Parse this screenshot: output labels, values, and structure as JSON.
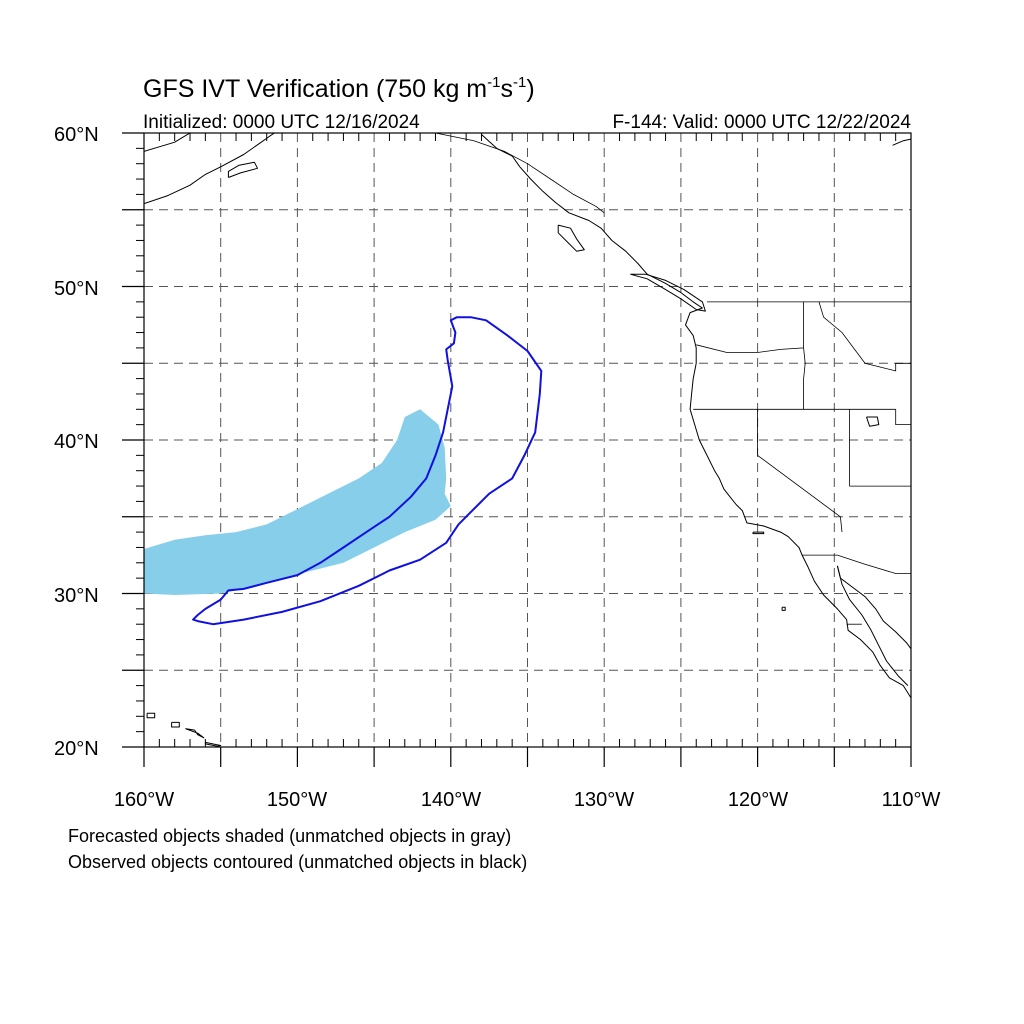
{
  "title": {
    "main": "GFS IVT Verification (750 kg m",
    "sup1": "-1",
    "mid": "s",
    "sup2": "-1",
    "end": ")"
  },
  "initialized": "Initialized: 0000 UTC 12/16/2024",
  "valid": "F-144: Valid: 0000 UTC 12/22/2024",
  "lat_labels": [
    "60°N",
    "50°N",
    "40°N",
    "30°N",
    "20°N"
  ],
  "lon_labels": [
    "160°W",
    "150°W",
    "140°W",
    "130°W",
    "120°W",
    "110°W"
  ],
  "notes": {
    "forecast": "Forecasted objects shaded (unmatched objects in gray)",
    "observed": "Observed objects contoured (unmatched objects in black)"
  },
  "colors": {
    "forecast_fill": "#87ceeb",
    "observed_contour": "#1010e0",
    "coastline": "#000000",
    "grid": "#555555"
  },
  "map_extent": {
    "lon": [
      -160,
      -110
    ],
    "lat": [
      20,
      60
    ]
  },
  "forecast_object": {
    "name": "forecast IVT object",
    "lonlat": [
      [
        -160,
        30
      ],
      [
        -160,
        32.9
      ],
      [
        -158,
        33.5
      ],
      [
        -156,
        33.8
      ],
      [
        -154,
        34
      ],
      [
        -152,
        34.5
      ],
      [
        -150,
        35.5
      ],
      [
        -148,
        36.5
      ],
      [
        -146,
        37.5
      ],
      [
        -144.5,
        38.5
      ],
      [
        -143.5,
        40
      ],
      [
        -143,
        41.5
      ],
      [
        -142,
        42
      ],
      [
        -140.8,
        41
      ],
      [
        -140.4,
        39.5
      ],
      [
        -140.3,
        37.5
      ],
      [
        -140.4,
        36.5
      ],
      [
        -140,
        35.7
      ],
      [
        -141,
        34.8
      ],
      [
        -143,
        34
      ],
      [
        -145,
        33
      ],
      [
        -147,
        32
      ],
      [
        -149,
        31.5
      ],
      [
        -151,
        31
      ],
      [
        -153,
        30.4
      ],
      [
        -155,
        30
      ],
      [
        -158,
        29.9
      ]
    ]
  },
  "observed_object": {
    "name": "observed IVT object",
    "lonlat": [
      [
        -156.5,
        28.2
      ],
      [
        -155.5,
        28
      ],
      [
        -153.5,
        28.3
      ],
      [
        -151,
        28.8
      ],
      [
        -148.5,
        29.5
      ],
      [
        -146,
        30.5
      ],
      [
        -144,
        31.5
      ],
      [
        -142,
        32.2
      ],
      [
        -140.3,
        33.3
      ],
      [
        -139.5,
        34.5
      ],
      [
        -138.5,
        35.5
      ],
      [
        -137.5,
        36.5
      ],
      [
        -136,
        37.5
      ],
      [
        -135.2,
        39
      ],
      [
        -134.5,
        40.5
      ],
      [
        -134.2,
        43
      ],
      [
        -134.1,
        44.5
      ],
      [
        -135,
        45.8
      ],
      [
        -136.3,
        46.8
      ],
      [
        -137.7,
        47.8
      ],
      [
        -138.7,
        48
      ],
      [
        -139.6,
        48
      ],
      [
        -140,
        47.8
      ],
      [
        -139.7,
        47
      ],
      [
        -139.8,
        46.3
      ],
      [
        -140.3,
        45.9
      ],
      [
        -140.2,
        45.2
      ],
      [
        -139.9,
        43.5
      ],
      [
        -140.2,
        42
      ],
      [
        -140.5,
        40.5
      ],
      [
        -141,
        39
      ],
      [
        -141.6,
        37.5
      ],
      [
        -142.6,
        36.3
      ],
      [
        -144,
        35
      ],
      [
        -145.5,
        34
      ],
      [
        -147,
        33
      ],
      [
        -148.5,
        32
      ],
      [
        -150,
        31.2
      ],
      [
        -152,
        30.7
      ],
      [
        -153.5,
        30.3
      ],
      [
        -154.5,
        30.2
      ],
      [
        -155,
        29.6
      ],
      [
        -156,
        29
      ],
      [
        -156.5,
        28.6
      ],
      [
        -156.8,
        28.3
      ]
    ]
  },
  "coastlines": [
    {
      "name": "north-america-west-coast",
      "lonlat": [
        [
          -138,
          59.9
        ],
        [
          -137,
          59
        ],
        [
          -136,
          58.5
        ],
        [
          -135.5,
          57.8
        ],
        [
          -134.8,
          57
        ],
        [
          -134,
          56.2
        ],
        [
          -133.2,
          55.5
        ],
        [
          -132.3,
          54.8
        ],
        [
          -131,
          54.3
        ],
        [
          -130.2,
          53.8
        ],
        [
          -129.5,
          53
        ],
        [
          -128.6,
          52.3
        ],
        [
          -127.8,
          51.5
        ],
        [
          -127.2,
          50.8
        ],
        [
          -126,
          50.2
        ],
        [
          -125,
          49.6
        ],
        [
          -124.2,
          49
        ],
        [
          -123.6,
          48.6
        ],
        [
          -124.4,
          48.3
        ],
        [
          -124.7,
          47.5
        ],
        [
          -124.2,
          46.8
        ],
        [
          -124,
          46
        ],
        [
          -124,
          45
        ],
        [
          -124.2,
          44
        ],
        [
          -124.3,
          43
        ],
        [
          -124.4,
          42
        ],
        [
          -124.1,
          41
        ],
        [
          -123.8,
          40
        ],
        [
          -123.3,
          39
        ],
        [
          -122.8,
          38
        ],
        [
          -122.5,
          37.5
        ],
        [
          -122.2,
          36.8
        ],
        [
          -121.8,
          36.3
        ],
        [
          -121.4,
          35.8
        ],
        [
          -121,
          35.4
        ],
        [
          -120.7,
          34.6
        ],
        [
          -119.6,
          34.4
        ],
        [
          -118.5,
          34
        ],
        [
          -118,
          33.7
        ],
        [
          -117.3,
          33
        ],
        [
          -117.1,
          32.5
        ],
        [
          -116.7,
          31.7
        ],
        [
          -116.3,
          30.8
        ],
        [
          -115.7,
          29.9
        ],
        [
          -114.8,
          29
        ],
        [
          -114.2,
          28.3
        ],
        [
          -114.1,
          27.6
        ],
        [
          -113.3,
          27
        ],
        [
          -112.5,
          26.2
        ],
        [
          -112,
          25.3
        ],
        [
          -111.4,
          24.5
        ],
        [
          -110.5,
          24
        ],
        [
          -110,
          23.2
        ]
      ]
    },
    {
      "name": "gulf-of-california-east",
      "lonlat": [
        [
          -114.8,
          31.8
        ],
        [
          -114.6,
          31
        ],
        [
          -113.8,
          30.4
        ],
        [
          -113,
          29.8
        ],
        [
          -112.3,
          29
        ],
        [
          -111.8,
          28.2
        ],
        [
          -111,
          27.5
        ],
        [
          -110.3,
          26.8
        ],
        [
          -110,
          26.4
        ]
      ]
    },
    {
      "name": "gulf-of-california-west",
      "lonlat": [
        [
          -114.8,
          31.8
        ],
        [
          -114.5,
          30.6
        ],
        [
          -114,
          29.6
        ],
        [
          -113.2,
          28.6
        ],
        [
          -112.6,
          27.6
        ],
        [
          -112.1,
          26.6
        ],
        [
          -111.6,
          25.6
        ],
        [
          -110.8,
          24.6
        ],
        [
          -110.2,
          24
        ]
      ]
    },
    {
      "name": "alaska-coast",
      "lonlat": [
        [
          -160,
          55.4
        ],
        [
          -158.5,
          55.9
        ],
        [
          -157,
          56.6
        ],
        [
          -156,
          57.3
        ],
        [
          -155,
          57.8
        ],
        [
          -153.5,
          58.6
        ],
        [
          -152.5,
          59.3
        ],
        [
          -151.8,
          59.8
        ],
        [
          -151.5,
          60
        ]
      ]
    },
    {
      "name": "kodiak-island",
      "lonlat": [
        [
          -154.5,
          57.1
        ],
        [
          -153.7,
          57.4
        ],
        [
          -152.6,
          57.7
        ],
        [
          -152.8,
          58.1
        ],
        [
          -153.8,
          57.9
        ],
        [
          -154.5,
          57.5
        ],
        [
          -154.5,
          57.1
        ]
      ]
    },
    {
      "name": "alaska-upper-left",
      "lonlat": [
        [
          -160,
          58.8
        ],
        [
          -159,
          59.1
        ],
        [
          -158,
          59.4
        ],
        [
          -157.5,
          59.7
        ],
        [
          -157,
          60
        ]
      ]
    },
    {
      "name": "haida-gwaii",
      "lonlat": [
        [
          -133,
          54
        ],
        [
          -132.2,
          53.8
        ],
        [
          -131.8,
          53.1
        ],
        [
          -131.3,
          52.4
        ],
        [
          -131.8,
          52.3
        ],
        [
          -132.4,
          52.9
        ],
        [
          -133,
          53.5
        ],
        [
          -133,
          54
        ]
      ]
    },
    {
      "name": "vancouver-island",
      "lonlat": [
        [
          -128.3,
          50.8
        ],
        [
          -127.2,
          50.5
        ],
        [
          -126,
          49.8
        ],
        [
          -125,
          49.2
        ],
        [
          -124,
          48.5
        ],
        [
          -123.4,
          48.4
        ],
        [
          -123.6,
          49
        ],
        [
          -124.8,
          49.8
        ],
        [
          -126,
          50.4
        ],
        [
          -127.3,
          50.8
        ],
        [
          -128.3,
          50.8
        ]
      ]
    },
    {
      "name": "upper-right-coast",
      "lonlat": [
        [
          -111.2,
          59.2
        ],
        [
          -110.5,
          59.5
        ],
        [
          -110,
          59.6
        ]
      ]
    },
    {
      "name": "hawaii-1",
      "lonlat": [
        [
          -159.8,
          22.2
        ],
        [
          -159.3,
          22.2
        ],
        [
          -159.3,
          21.9
        ],
        [
          -159.8,
          21.9
        ],
        [
          -159.8,
          22.2
        ]
      ]
    },
    {
      "name": "hawaii-2",
      "lonlat": [
        [
          -158.2,
          21.6
        ],
        [
          -157.7,
          21.6
        ],
        [
          -157.7,
          21.3
        ],
        [
          -158.2,
          21.3
        ],
        [
          -158.2,
          21.6
        ]
      ]
    },
    {
      "name": "hawaii-3",
      "lonlat": [
        [
          -157.3,
          21.2
        ],
        [
          -156.7,
          21.1
        ],
        [
          -156.5,
          20.8
        ],
        [
          -156.1,
          20.6
        ],
        [
          -156.5,
          20.9
        ],
        [
          -157.3,
          21.2
        ]
      ]
    },
    {
      "name": "hawaii-4",
      "lonlat": [
        [
          -156,
          20.3
        ],
        [
          -155,
          20.1
        ],
        [
          -155.2,
          20.05
        ],
        [
          -156,
          20.2
        ],
        [
          -156,
          20.3
        ]
      ]
    },
    {
      "name": "great-salt-lake",
      "lonlat": [
        [
          -112.9,
          41.5
        ],
        [
          -112.2,
          41.5
        ],
        [
          -112.1,
          41
        ],
        [
          -112.7,
          40.9
        ],
        [
          -112.9,
          41.5
        ]
      ]
    },
    {
      "name": "channel-islands",
      "lonlat": [
        [
          -120.3,
          34
        ],
        [
          -119.6,
          34
        ],
        [
          -119.6,
          33.9
        ],
        [
          -120.3,
          33.9
        ],
        [
          -120.3,
          34
        ]
      ]
    },
    {
      "name": "guadalupe-island",
      "lonlat": [
        [
          -118.4,
          29.1
        ],
        [
          -118.2,
          29.1
        ],
        [
          -118.2,
          28.9
        ],
        [
          -118.4,
          28.9
        ],
        [
          -118.4,
          29.1
        ]
      ]
    }
  ],
  "borders": [
    {
      "name": "us-canada-border",
      "lonlat": [
        [
          -123.3,
          49
        ],
        [
          -110,
          49
        ]
      ]
    },
    {
      "name": "alaska-canada-border",
      "lonlat": [
        [
          -141,
          60
        ],
        [
          -138.5,
          59.5
        ],
        [
          -136.5,
          58.8
        ],
        [
          -135,
          58
        ],
        [
          -133.5,
          57
        ],
        [
          -132,
          56
        ],
        [
          -130.5,
          55.2
        ],
        [
          -130,
          54.8
        ]
      ]
    },
    {
      "name": "oregon-washington-border",
      "lonlat": [
        [
          -124,
          46.2
        ],
        [
          -122,
          45.7
        ],
        [
          -120,
          45.7
        ],
        [
          -118.5,
          45.9
        ],
        [
          -117,
          46
        ],
        [
          -117,
          49
        ]
      ]
    },
    {
      "name": "idaho-border",
      "lonlat": [
        [
          -117,
          46
        ],
        [
          -116.9,
          45
        ],
        [
          -117,
          44
        ],
        [
          -117,
          42
        ]
      ]
    },
    {
      "name": "oregon-california-border",
      "lonlat": [
        [
          -124.2,
          42
        ],
        [
          -111,
          42
        ]
      ]
    },
    {
      "name": "california-nevada-border",
      "lonlat": [
        [
          -120,
          42
        ],
        [
          -120,
          39
        ],
        [
          -114.6,
          35
        ],
        [
          -114.5,
          34
        ]
      ]
    },
    {
      "name": "nevada-utah-border",
      "lonlat": [
        [
          -114,
          42
        ],
        [
          -114,
          37
        ]
      ]
    },
    {
      "name": "utah-border",
      "lonlat": [
        [
          -111,
          42
        ],
        [
          -111,
          41
        ],
        [
          -110,
          41
        ]
      ]
    },
    {
      "name": "montana-idaho-border",
      "lonlat": [
        [
          -116,
          49
        ],
        [
          -115.7,
          48
        ],
        [
          -114.5,
          47
        ],
        [
          -113,
          45
        ],
        [
          -111,
          44.5
        ],
        [
          -111,
          45
        ],
        [
          -110,
          45
        ]
      ]
    },
    {
      "name": "arizona-utah-border",
      "lonlat": [
        [
          -114,
          37
        ],
        [
          -110,
          37
        ]
      ]
    },
    {
      "name": "mexico-border",
      "lonlat": [
        [
          -117.1,
          32.5
        ],
        [
          -114.8,
          32.5
        ],
        [
          -113,
          31.9
        ],
        [
          -111,
          31.3
        ],
        [
          -110,
          31.3
        ]
      ]
    },
    {
      "name": "baja-state-border",
      "lonlat": [
        [
          -114.2,
          28
        ],
        [
          -113.2,
          28
        ]
      ]
    }
  ]
}
